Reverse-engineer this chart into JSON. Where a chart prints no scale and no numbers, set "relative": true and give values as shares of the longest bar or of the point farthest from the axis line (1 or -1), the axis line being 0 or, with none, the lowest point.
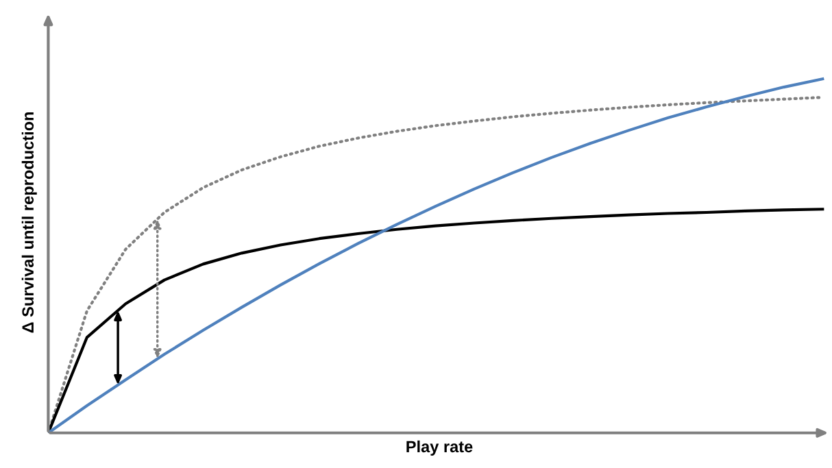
{
  "chart_data": {
    "type": "line",
    "relative": true,
    "xlabel": "Play rate",
    "ylabel": "Δ Survival until reproduction",
    "categories": [
      null,
      null,
      null,
      null,
      null,
      null,
      null,
      null,
      null,
      null,
      null,
      null,
      null,
      null,
      null,
      null,
      null,
      null,
      null,
      null,
      null
    ],
    "series": [
      {
        "color": "#808080",
        "line_style": "dotted",
        "values": [
          0,
          0.345,
          0.519,
          0.623,
          0.693,
          0.743,
          0.78,
          0.81,
          0.833,
          0.852,
          0.868,
          0.881,
          0.893,
          0.903,
          0.912,
          0.92,
          0.927,
          0.933,
          0.938,
          0.943,
          0.948
        ]
      },
      {
        "color": "#000000",
        "line_style": "solid",
        "values": [
          0,
          0.27,
          0.365,
          0.432,
          0.477,
          0.508,
          0.531,
          0.549,
          0.563,
          0.575,
          0.585,
          0.593,
          0.6,
          0.606,
          0.611,
          0.616,
          0.62,
          0.623,
          0.627,
          0.63,
          0.632
        ]
      },
      {
        "color": "#4f81bd",
        "line_style": "solid",
        "values": [
          0,
          0.077,
          0.15,
          0.222,
          0.29,
          0.355,
          0.418,
          0.478,
          0.535,
          0.589,
          0.64,
          0.689,
          0.735,
          0.778,
          0.818,
          0.855,
          0.89,
          0.921,
          0.95,
          0.977,
          1.0
        ]
      }
    ]
  }
}
